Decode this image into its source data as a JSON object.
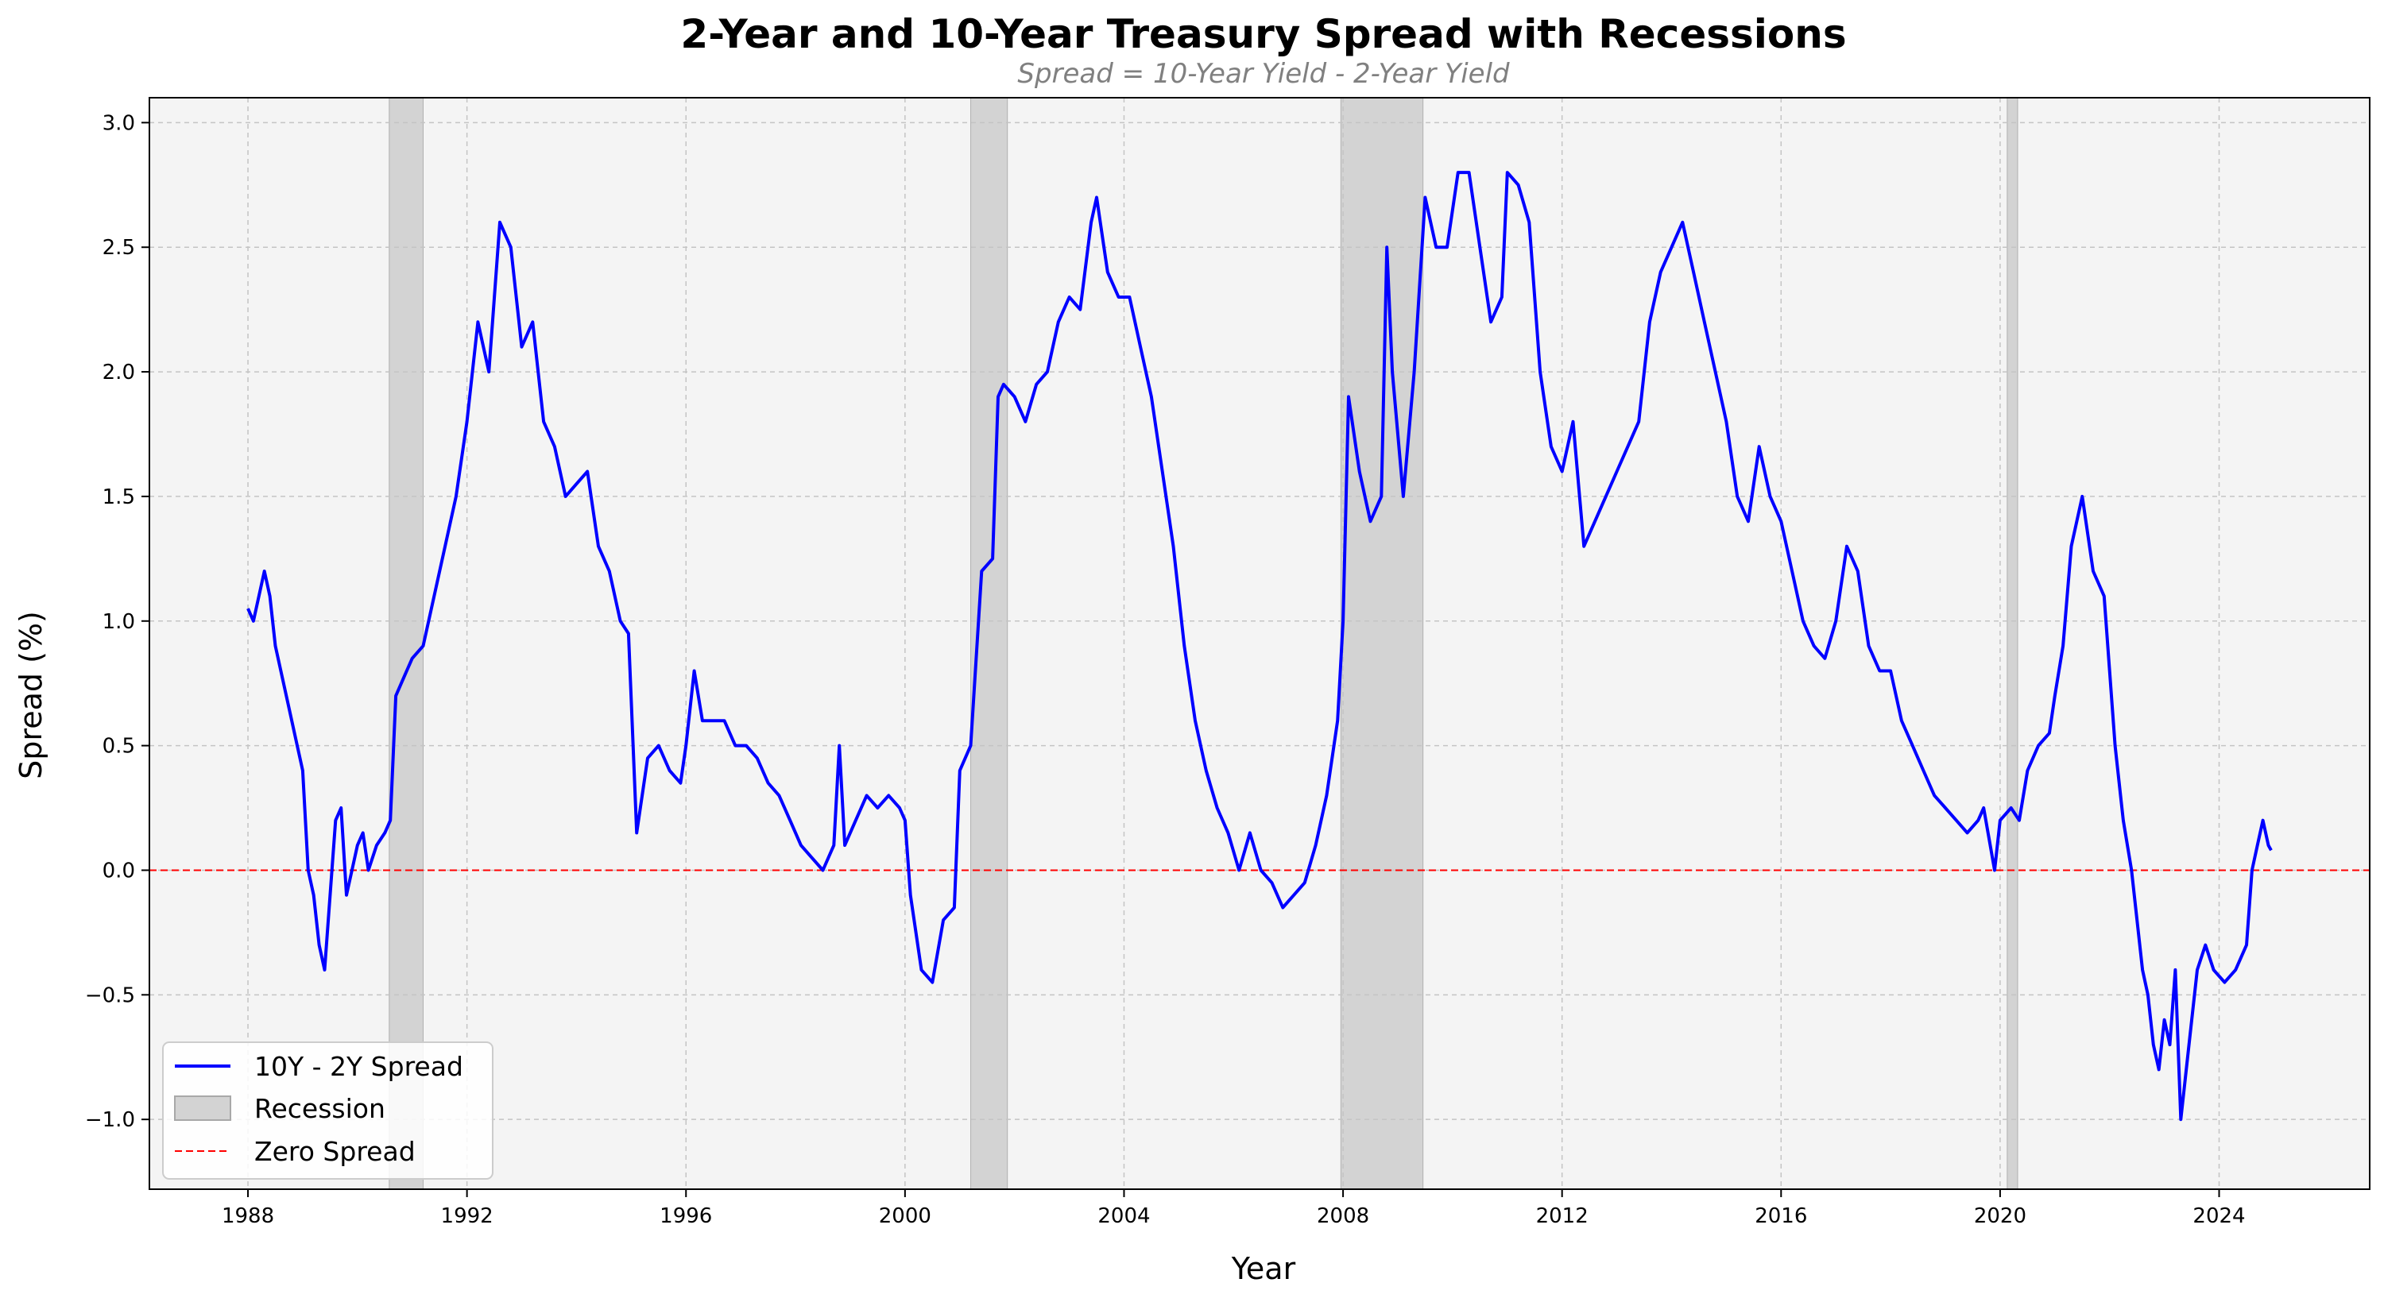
{
  "chart_data": {
    "type": "line",
    "title": "2-Year and 10-Year Treasury Spread with Recessions",
    "subtitle": "Spread = 10-Year Yield - 2-Year Yield",
    "xlabel": "Year",
    "ylabel": "Spread (%)",
    "xlim": [
      1986.2,
      2026.75
    ],
    "ylim": [
      -1.28,
      3.1
    ],
    "x_ticks": [
      1988,
      1992,
      1996,
      2000,
      2004,
      2008,
      2012,
      2016,
      2020,
      2024
    ],
    "x_tick_labels": [
      "1988",
      "1992",
      "1996",
      "2000",
      "2004",
      "2008",
      "2012",
      "2016",
      "2020",
      "2024"
    ],
    "y_ticks": [
      -1.0,
      -0.5,
      0.0,
      0.5,
      1.0,
      1.5,
      2.0,
      2.5,
      3.0
    ],
    "y_tick_labels": [
      "−1.0",
      "−0.5",
      "0.0",
      "0.5",
      "1.0",
      "1.5",
      "2.0",
      "2.5",
      "3.0"
    ],
    "grid": true,
    "legend_position": "lower-left",
    "legend": [
      "10Y - 2Y Spread",
      "Recession",
      "Zero Spread"
    ],
    "colors": {
      "spread": "#0000ff",
      "recession": "#d3d3d3",
      "zero": "#ff0000",
      "plot_bg": "#f4f4f4"
    },
    "series": [
      {
        "name": "10Y - 2Y Spread",
        "x": [
          1988.0,
          1988.1,
          1988.2,
          1988.3,
          1988.4,
          1988.5,
          1988.7,
          1988.9,
          1989.0,
          1989.1,
          1989.2,
          1989.3,
          1989.4,
          1989.5,
          1989.6,
          1989.7,
          1989.8,
          1989.9,
          1990.0,
          1990.1,
          1990.2,
          1990.35,
          1990.5,
          1990.6,
          1990.7,
          1990.9,
          1991.0,
          1991.2,
          1991.4,
          1991.6,
          1991.8,
          1992.0,
          1992.2,
          1992.4,
          1992.5,
          1992.6,
          1992.8,
          1993.0,
          1993.2,
          1993.4,
          1993.6,
          1993.8,
          1994.0,
          1994.2,
          1994.4,
          1994.6,
          1994.8,
          1994.95,
          1995.1,
          1995.3,
          1995.5,
          1995.7,
          1995.9,
          1996.0,
          1996.15,
          1996.3,
          1996.5,
          1996.7,
          1996.9,
          1997.1,
          1997.3,
          1997.5,
          1997.7,
          1997.9,
          1998.1,
          1998.3,
          1998.5,
          1998.7,
          1998.8,
          1998.9,
          1999.1,
          1999.3,
          1999.5,
          1999.7,
          1999.9,
          2000.0,
          2000.1,
          2000.3,
          2000.5,
          2000.7,
          2000.9,
          2001.0,
          2001.2,
          2001.4,
          2001.6,
          2001.7,
          2001.8,
          2002.0,
          2002.2,
          2002.4,
          2002.6,
          2002.8,
          2003.0,
          2003.2,
          2003.4,
          2003.5,
          2003.7,
          2003.9,
          2004.1,
          2004.3,
          2004.5,
          2004.7,
          2004.9,
          2005.1,
          2005.3,
          2005.5,
          2005.7,
          2005.9,
          2006.1,
          2006.3,
          2006.5,
          2006.7,
          2006.9,
          2007.1,
          2007.3,
          2007.5,
          2007.7,
          2007.9,
          2008.0,
          2008.1,
          2008.3,
          2008.5,
          2008.7,
          2008.8,
          2008.9,
          2009.1,
          2009.3,
          2009.5,
          2009.7,
          2009.9,
          2010.1,
          2010.3,
          2010.5,
          2010.7,
          2010.9,
          2011.0,
          2011.2,
          2011.4,
          2011.6,
          2011.8,
          2012.0,
          2012.2,
          2012.4,
          2012.6,
          2012.8,
          2013.0,
          2013.2,
          2013.4,
          2013.6,
          2013.8,
          2014.0,
          2014.2,
          2014.4,
          2014.6,
          2014.8,
          2015.0,
          2015.2,
          2015.4,
          2015.6,
          2015.8,
          2016.0,
          2016.2,
          2016.4,
          2016.6,
          2016.8,
          2017.0,
          2017.2,
          2017.4,
          2017.6,
          2017.8,
          2018.0,
          2018.2,
          2018.4,
          2018.6,
          2018.8,
          2019.0,
          2019.2,
          2019.4,
          2019.6,
          2019.7,
          2019.9,
          2020.0,
          2020.2,
          2020.35,
          2020.5,
          2020.7,
          2020.9,
          2021.0,
          2021.15,
          2021.3,
          2021.5,
          2021.7,
          2021.9,
          2022.0,
          2022.1,
          2022.25,
          2022.4,
          2022.5,
          2022.6,
          2022.7,
          2022.8,
          2022.9,
          2023.0,
          2023.1,
          2023.2,
          2023.3,
          2023.45,
          2023.6,
          2023.75,
          2023.9,
          2024.1,
          2024.3,
          2024.5,
          2024.6,
          2024.7,
          2024.8,
          2024.9,
          2024.95
        ],
        "values": [
          1.05,
          1.0,
          1.1,
          1.2,
          1.1,
          0.9,
          0.7,
          0.5,
          0.4,
          0.0,
          -0.1,
          -0.3,
          -0.4,
          -0.1,
          0.2,
          0.25,
          -0.1,
          0.0,
          0.1,
          0.15,
          0.0,
          0.1,
          0.15,
          0.2,
          0.7,
          0.8,
          0.85,
          0.9,
          1.1,
          1.3,
          1.5,
          1.8,
          2.2,
          2.0,
          2.3,
          2.6,
          2.5,
          2.1,
          2.2,
          1.8,
          1.7,
          1.5,
          1.55,
          1.6,
          1.3,
          1.2,
          1.0,
          0.95,
          0.15,
          0.45,
          0.5,
          0.4,
          0.35,
          0.5,
          0.8,
          0.6,
          0.6,
          0.6,
          0.5,
          0.5,
          0.45,
          0.35,
          0.3,
          0.2,
          0.1,
          0.05,
          0.0,
          0.1,
          0.5,
          0.1,
          0.2,
          0.3,
          0.25,
          0.3,
          0.25,
          0.2,
          -0.1,
          -0.4,
          -0.45,
          -0.2,
          -0.15,
          0.4,
          0.5,
          1.2,
          1.25,
          1.9,
          1.95,
          1.9,
          1.8,
          1.95,
          2.0,
          2.2,
          2.3,
          2.25,
          2.6,
          2.7,
          2.4,
          2.3,
          2.3,
          2.1,
          1.9,
          1.6,
          1.3,
          0.9,
          0.6,
          0.4,
          0.25,
          0.15,
          0.0,
          0.15,
          0.0,
          -0.05,
          -0.15,
          -0.1,
          -0.05,
          0.1,
          0.3,
          0.6,
          1.0,
          1.9,
          1.6,
          1.4,
          1.5,
          2.5,
          2.0,
          1.5,
          2.0,
          2.7,
          2.5,
          2.5,
          2.8,
          2.8,
          2.5,
          2.2,
          2.3,
          2.8,
          2.75,
          2.6,
          2.0,
          1.7,
          1.6,
          1.8,
          1.3,
          1.4,
          1.5,
          1.6,
          1.7,
          1.8,
          2.2,
          2.4,
          2.5,
          2.6,
          2.4,
          2.2,
          2.0,
          1.8,
          1.5,
          1.4,
          1.7,
          1.5,
          1.4,
          1.2,
          1.0,
          0.9,
          0.85,
          1.0,
          1.3,
          1.2,
          0.9,
          0.8,
          0.8,
          0.6,
          0.5,
          0.4,
          0.3,
          0.25,
          0.2,
          0.15,
          0.2,
          0.25,
          0.0,
          0.2,
          0.25,
          0.2,
          0.4,
          0.5,
          0.55,
          0.7,
          0.9,
          1.3,
          1.5,
          1.2,
          1.1,
          0.8,
          0.5,
          0.2,
          0.0,
          -0.2,
          -0.4,
          -0.5,
          -0.7,
          -0.8,
          -0.6,
          -0.7,
          -0.4,
          -1.0,
          -0.7,
          -0.4,
          -0.3,
          -0.4,
          -0.45,
          -0.4,
          -0.3,
          0.0,
          0.1,
          0.2,
          0.1,
          0.08
        ]
      },
      {
        "name": "Recession",
        "ranges": [
          [
            1990.58,
            1991.2
          ],
          [
            2001.2,
            2001.87
          ],
          [
            2007.96,
            2009.46
          ],
          [
            2020.13,
            2020.32
          ]
        ]
      },
      {
        "name": "Zero Spread",
        "y": 0.0
      }
    ]
  }
}
